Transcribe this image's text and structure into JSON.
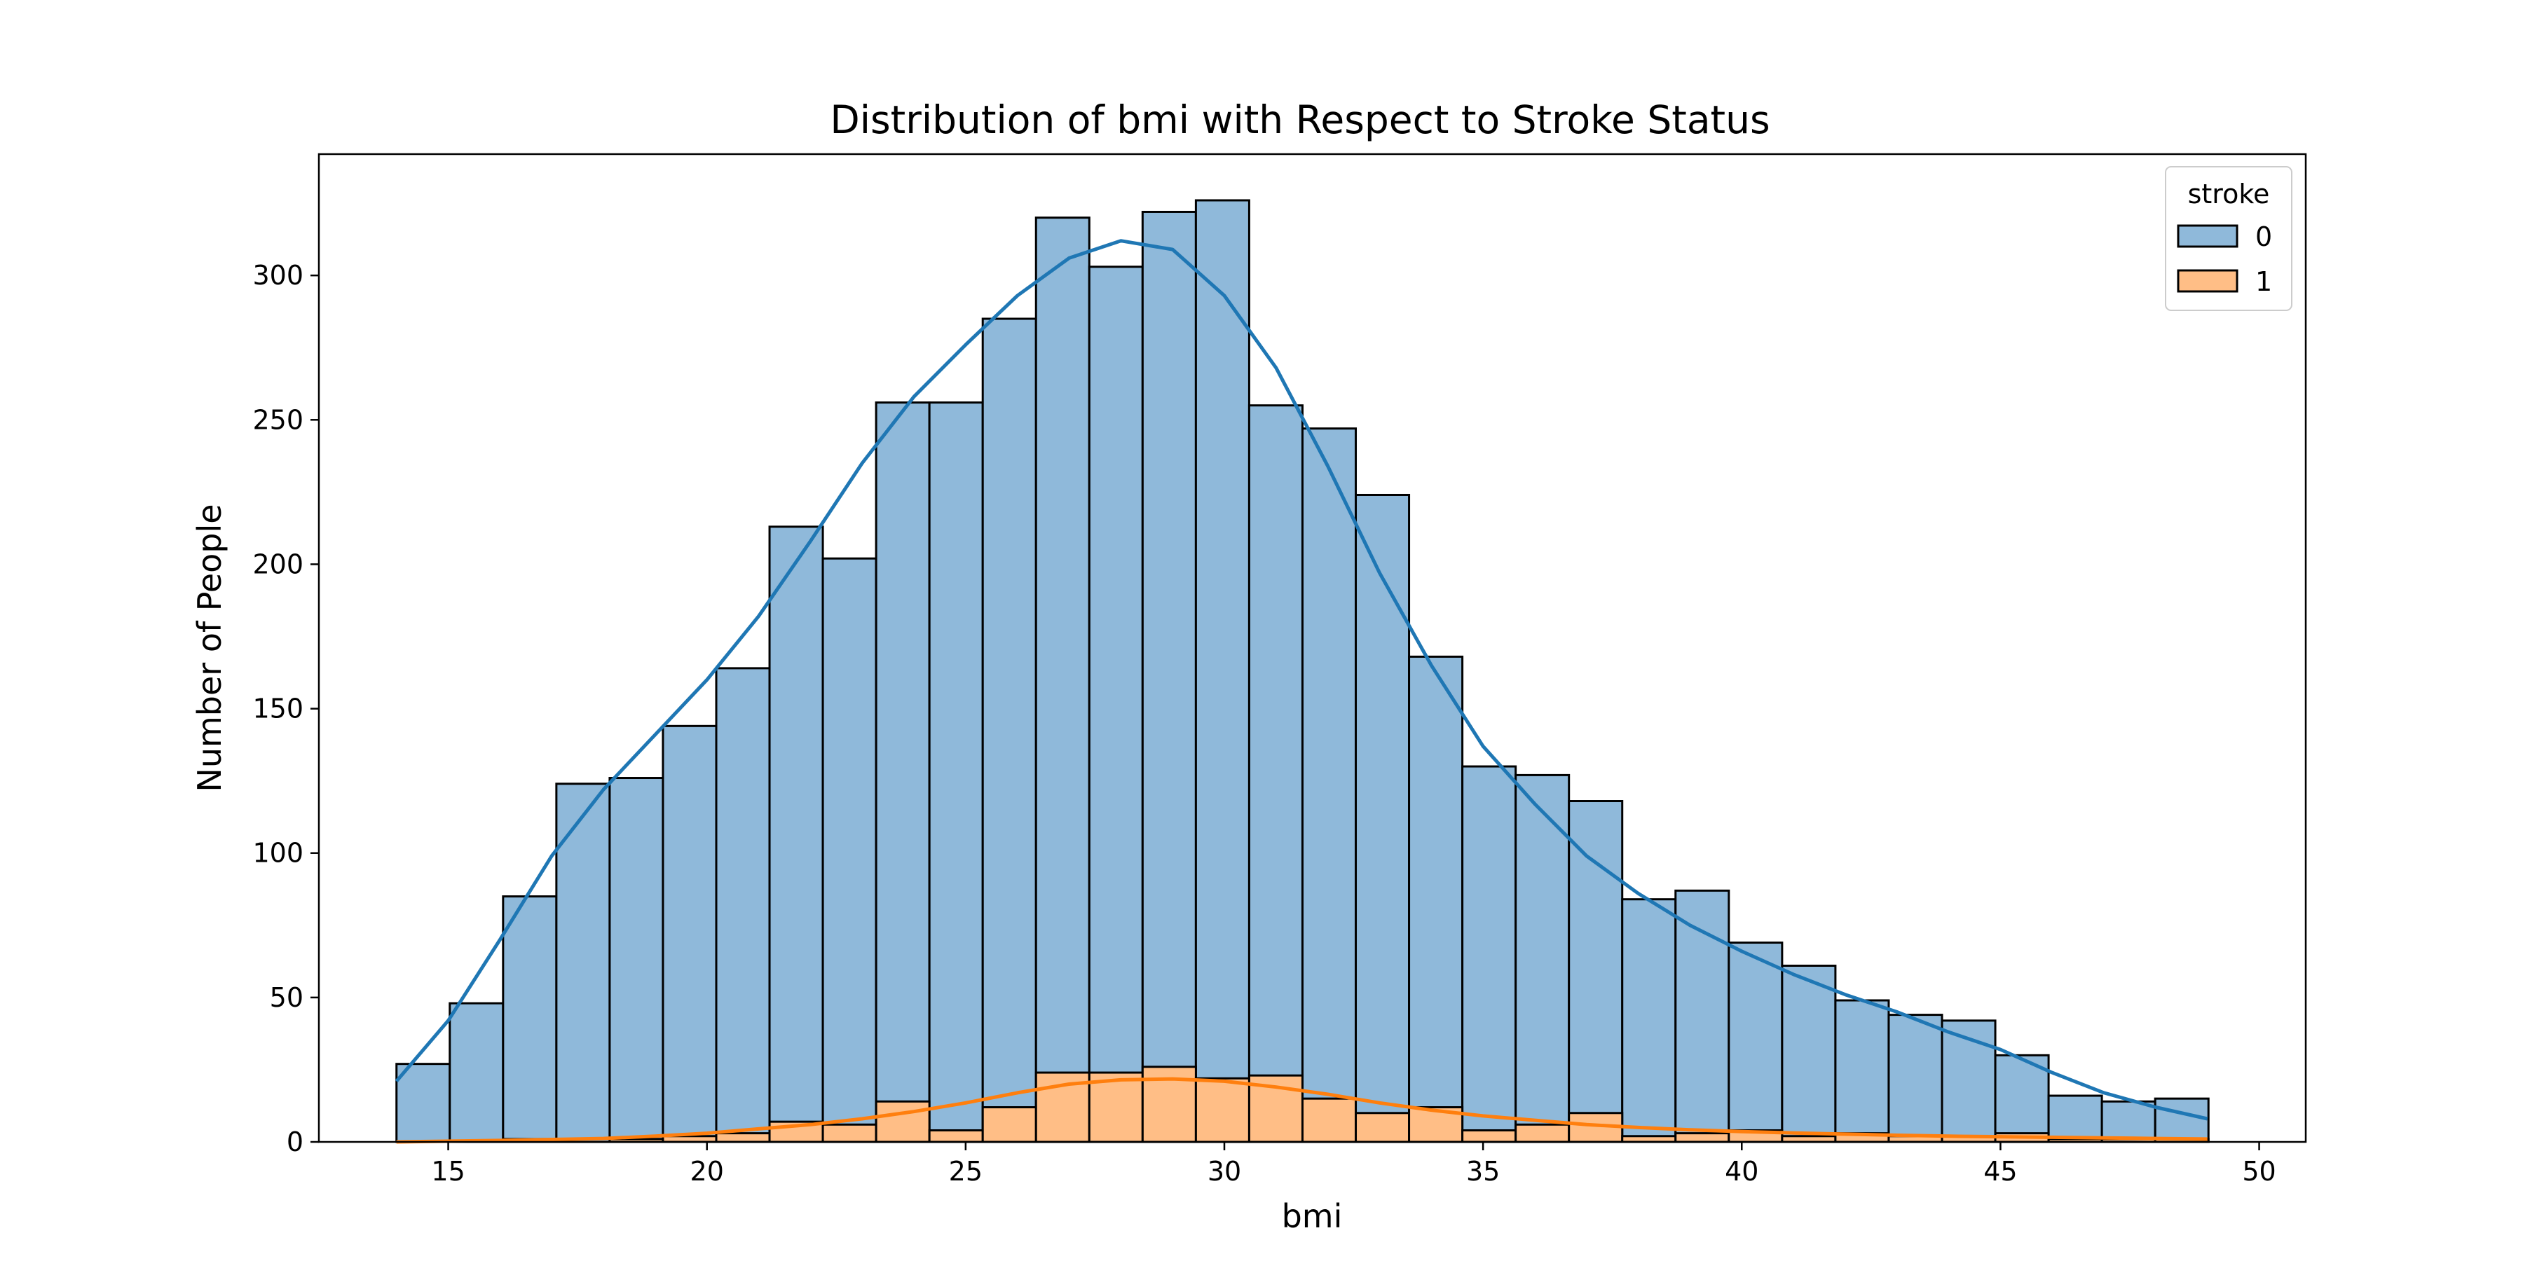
{
  "chart_data": {
    "type": "histogram",
    "title": "Distribution of bmi with Respect to Stroke Status",
    "xlabel": "bmi",
    "ylabel": "Number of People",
    "xlim": [
      12.5,
      50.9
    ],
    "ylim": [
      0,
      342
    ],
    "xticks": [
      15,
      20,
      25,
      30,
      35,
      40,
      45,
      50
    ],
    "yticks": [
      0,
      50,
      100,
      150,
      200,
      250,
      300
    ],
    "bin_start": 14.0,
    "bin_width": 1.03,
    "legend": {
      "title": "stroke",
      "position": "top-right"
    },
    "series": [
      {
        "name": "0",
        "color": "#1f77b4",
        "bar_fill": "#8fb9da",
        "values": [
          27,
          48,
          85,
          124,
          126,
          144,
          164,
          213,
          202,
          256,
          256,
          285,
          320,
          303,
          322,
          326,
          255,
          247,
          224,
          168,
          130,
          127,
          118,
          84,
          87,
          69,
          61,
          49,
          44,
          42,
          30,
          16,
          14,
          15
        ],
        "kde": [
          [
            14.0,
            21
          ],
          [
            15.0,
            42
          ],
          [
            16.0,
            70
          ],
          [
            17.0,
            99
          ],
          [
            18.0,
            122
          ],
          [
            19.0,
            141
          ],
          [
            20.0,
            160
          ],
          [
            21.0,
            182
          ],
          [
            22.0,
            208
          ],
          [
            23.0,
            235
          ],
          [
            24.0,
            258
          ],
          [
            25.0,
            276
          ],
          [
            26.0,
            293
          ],
          [
            27.0,
            306
          ],
          [
            28.0,
            312
          ],
          [
            29.0,
            309
          ],
          [
            30.0,
            293
          ],
          [
            31.0,
            268
          ],
          [
            32.0,
            234
          ],
          [
            33.0,
            197
          ],
          [
            34.0,
            165
          ],
          [
            35.0,
            137
          ],
          [
            36.0,
            117
          ],
          [
            37.0,
            99
          ],
          [
            38.0,
            86
          ],
          [
            39.0,
            75
          ],
          [
            40.0,
            66
          ],
          [
            41.0,
            58
          ],
          [
            42.0,
            51
          ],
          [
            43.0,
            45
          ],
          [
            44.0,
            38
          ],
          [
            45.0,
            32
          ],
          [
            46.0,
            24
          ],
          [
            47.0,
            17
          ],
          [
            48.0,
            12
          ],
          [
            49.0,
            8
          ]
        ]
      },
      {
        "name": "1",
        "color": "#ff7f0e",
        "bar_fill": "#ffbe86",
        "values": [
          0,
          0,
          1,
          0,
          1,
          2,
          3,
          7,
          6,
          14,
          4,
          12,
          24,
          24,
          26,
          22,
          23,
          15,
          10,
          12,
          4,
          6,
          10,
          2,
          3,
          4,
          2,
          3,
          2,
          2,
          3,
          1,
          1,
          1
        ],
        "kde": [
          [
            14.0,
            0
          ],
          [
            16.0,
            0.5
          ],
          [
            18.0,
            1.2
          ],
          [
            19.0,
            2
          ],
          [
            20.0,
            3
          ],
          [
            21.0,
            4.5
          ],
          [
            22.0,
            6
          ],
          [
            23.0,
            8
          ],
          [
            24.0,
            10.5
          ],
          [
            25.0,
            13.5
          ],
          [
            26.0,
            17
          ],
          [
            27.0,
            20
          ],
          [
            28.0,
            21.5
          ],
          [
            29.0,
            21.8
          ],
          [
            30.0,
            21
          ],
          [
            31.0,
            19
          ],
          [
            32.0,
            16.5
          ],
          [
            33.0,
            13.5
          ],
          [
            34.0,
            11
          ],
          [
            35.0,
            9
          ],
          [
            36.0,
            7.5
          ],
          [
            37.0,
            6
          ],
          [
            38.0,
            5
          ],
          [
            39.0,
            4.2
          ],
          [
            40.0,
            3.6
          ],
          [
            41.0,
            3.1
          ],
          [
            42.0,
            2.7
          ],
          [
            43.0,
            2.3
          ],
          [
            44.0,
            2
          ],
          [
            45.0,
            1.8
          ],
          [
            46.0,
            1.6
          ],
          [
            47.0,
            1.4
          ],
          [
            48.0,
            1.2
          ],
          [
            49.0,
            1
          ]
        ]
      }
    ]
  }
}
